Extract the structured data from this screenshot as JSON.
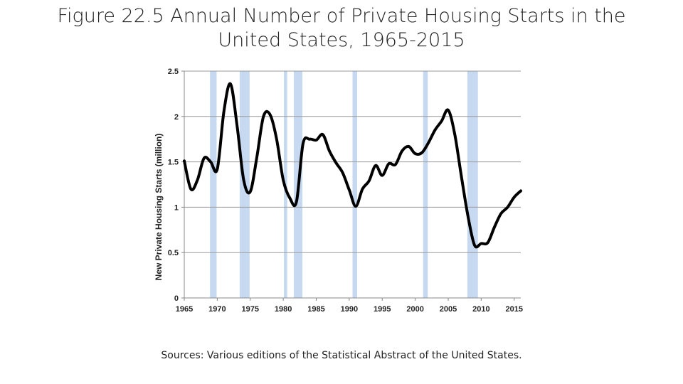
{
  "slide": {
    "title_line1": "Figure 22.5 Annual Number of Private Housing Starts in the",
    "title_line2": "United States, 1965-2015",
    "sources": "Sources: Various editions of the Statistical Abstract of the United States."
  },
  "chart_data": {
    "type": "line",
    "title": "Figure 22.5 Annual Number of Private Housing Starts in the United States, 1965-2015",
    "xlabel": "",
    "ylabel": "New Private Housing Starts (million)",
    "xlim": [
      1965,
      2016
    ],
    "ylim": [
      0,
      2.5
    ],
    "x_ticks": [
      1965,
      1970,
      1975,
      1980,
      1985,
      1990,
      1995,
      2000,
      2005,
      2010,
      2015
    ],
    "y_ticks": [
      0,
      0.5,
      1,
      1.5,
      2,
      2.5
    ],
    "y_tick_labels": [
      "0",
      "0.5",
      "1",
      "1.5",
      "2",
      "2.5"
    ],
    "grid": "horizontal",
    "line_color": "#000000",
    "recession_color": "#c6d9f0",
    "recessions": [
      [
        1968.9,
        1969.9
      ],
      [
        1973.4,
        1974.9
      ],
      [
        1980.1,
        1980.6
      ],
      [
        1981.6,
        1982.9
      ],
      [
        1990.5,
        1991.2
      ],
      [
        2001.2,
        2001.9
      ],
      [
        2007.9,
        2009.5
      ]
    ],
    "series": [
      {
        "x": [
          1965,
          1966,
          1967,
          1968,
          1969,
          1970,
          1971,
          1972,
          1973,
          1974,
          1975,
          1976,
          1977,
          1978,
          1979,
          1980,
          1981,
          1982,
          1983,
          1984,
          1985,
          1986,
          1987,
          1988,
          1989,
          1990,
          1991,
          1992,
          1993,
          1994,
          1995,
          1996,
          1997,
          1998,
          1999,
          2000,
          2001,
          2002,
          2003,
          2004,
          2005,
          2006,
          2007,
          2008,
          2009,
          2010,
          2011,
          2012,
          2013,
          2014,
          2015,
          2016
        ],
        "values": [
          1.51,
          1.2,
          1.3,
          1.54,
          1.5,
          1.42,
          2.05,
          2.36,
          1.9,
          1.3,
          1.17,
          1.55,
          2.0,
          2.02,
          1.75,
          1.3,
          1.1,
          1.06,
          1.7,
          1.75,
          1.74,
          1.8,
          1.62,
          1.49,
          1.38,
          1.19,
          1.01,
          1.2,
          1.29,
          1.46,
          1.35,
          1.48,
          1.47,
          1.62,
          1.67,
          1.59,
          1.6,
          1.71,
          1.85,
          1.95,
          2.07,
          1.8,
          1.34,
          0.9,
          0.58,
          0.6,
          0.61,
          0.78,
          0.93,
          1.0,
          1.11,
          1.18
        ]
      }
    ]
  }
}
